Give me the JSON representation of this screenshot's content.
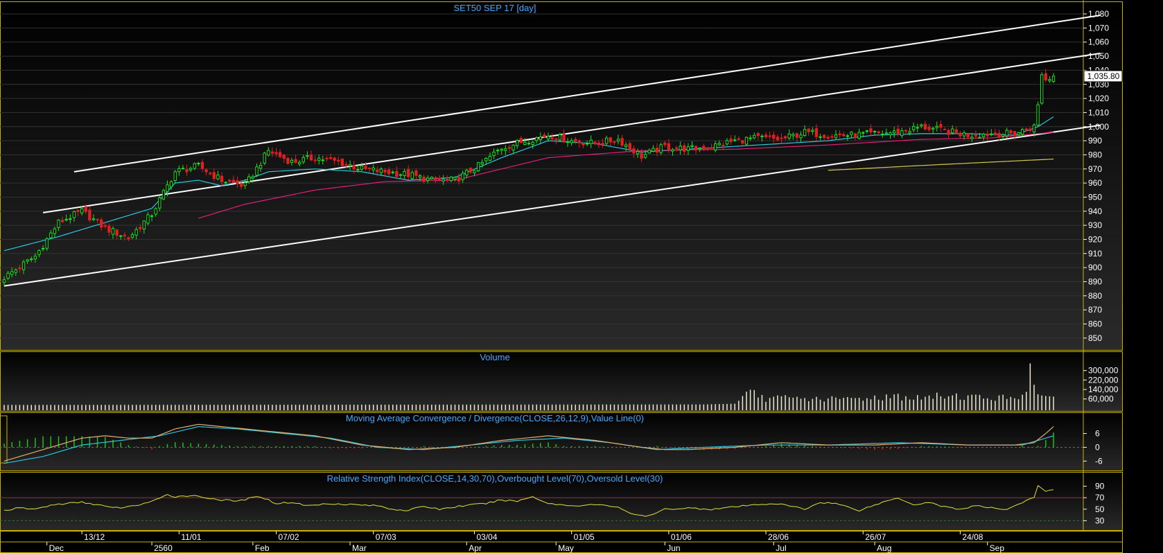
{
  "chart_data": [
    {
      "type": "candlestick",
      "title": "SET50 SEP 17   [day]",
      "last_price_label": "1,035.80",
      "ylim": [
        845,
        1082
      ],
      "y_ticks": [
        850,
        860,
        870,
        880,
        890,
        900,
        910,
        920,
        930,
        940,
        950,
        960,
        970,
        980,
        990,
        1000,
        1010,
        1020,
        1030,
        1040,
        1050,
        1060,
        1070,
        1080
      ],
      "y_tick_labels": [
        "850",
        "860",
        "870",
        "880",
        "890",
        "900",
        "910",
        "920",
        "930",
        "940",
        "950",
        "960",
        "970",
        "980",
        "990",
        "1,000",
        "1,010",
        "1,020",
        "1,030",
        "1,040",
        "1,050",
        "1,060",
        "1,070",
        "1,080"
      ],
      "close_anchors": [
        [
          0,
          893
        ],
        [
          8,
          908
        ],
        [
          14,
          932
        ],
        [
          20,
          940
        ],
        [
          26,
          928
        ],
        [
          32,
          921
        ],
        [
          38,
          938
        ],
        [
          44,
          968
        ],
        [
          50,
          972
        ],
        [
          56,
          962
        ],
        [
          62,
          958
        ],
        [
          68,
          983
        ],
        [
          74,
          975
        ],
        [
          80,
          978
        ],
        [
          86,
          975
        ],
        [
          92,
          970
        ],
        [
          98,
          968
        ],
        [
          104,
          966
        ],
        [
          110,
          962
        ],
        [
          116,
          962
        ],
        [
          122,
          972
        ],
        [
          128,
          985
        ],
        [
          134,
          990
        ],
        [
          140,
          994
        ],
        [
          146,
          990
        ],
        [
          152,
          988
        ],
        [
          158,
          991
        ],
        [
          164,
          979
        ],
        [
          170,
          986
        ],
        [
          176,
          984
        ],
        [
          182,
          986
        ],
        [
          188,
          990
        ],
        [
          194,
          992
        ],
        [
          200,
          991
        ],
        [
          206,
          996
        ],
        [
          212,
          994
        ],
        [
          218,
          994
        ],
        [
          224,
          995
        ],
        [
          230,
          996
        ],
        [
          236,
          1000
        ],
        [
          242,
          997
        ],
        [
          248,
          994
        ],
        [
          254,
          995
        ],
        [
          260,
          995
        ],
        [
          265,
          1000
        ],
        [
          266,
          1015
        ],
        [
          267,
          1038
        ],
        [
          268,
          1033
        ],
        [
          270,
          1035.8
        ]
      ],
      "moving_averages": [
        {
          "name": "ma-cyan",
          "color": "#2dc8e0",
          "points": [
            [
              0,
              912
            ],
            [
              14,
              922
            ],
            [
              26,
              932
            ],
            [
              38,
              942
            ],
            [
              44,
              960
            ],
            [
              50,
              962
            ],
            [
              56,
              958
            ],
            [
              62,
              962
            ],
            [
              68,
              968
            ],
            [
              80,
              970
            ],
            [
              92,
              968
            ],
            [
              104,
              962
            ],
            [
              116,
              964
            ],
            [
              128,
              978
            ],
            [
              140,
              990
            ],
            [
              152,
              988
            ],
            [
              164,
              982
            ],
            [
              176,
              984
            ],
            [
              188,
              986
            ],
            [
              200,
              988
            ],
            [
              212,
              990
            ],
            [
              224,
              994
            ],
            [
              236,
              995
            ],
            [
              248,
              995
            ],
            [
              260,
              994
            ],
            [
              266,
              1000
            ],
            [
              270,
              1007
            ]
          ]
        },
        {
          "name": "ma-pink",
          "color": "#e0207a",
          "points": [
            [
              50,
              935
            ],
            [
              62,
              945
            ],
            [
              80,
              955
            ],
            [
              98,
              961
            ],
            [
              116,
              962
            ],
            [
              140,
              978
            ],
            [
              164,
              983
            ],
            [
              188,
              984
            ],
            [
              212,
              987
            ],
            [
              236,
              991
            ],
            [
              254,
              992
            ],
            [
              270,
              996
            ]
          ]
        },
        {
          "name": "ma-yellow",
          "color": "#d8c84a",
          "points": [
            [
              212,
              969
            ],
            [
              240,
              973
            ],
            [
              270,
              977
            ]
          ]
        }
      ],
      "channel_lines": [
        {
          "name": "channel-lower",
          "points": [
            [
              0,
              887
            ],
            [
              282,
              1001
            ]
          ]
        },
        {
          "name": "channel-middle",
          "points": [
            [
              10,
              939
            ],
            [
              282,
              1052
            ]
          ]
        },
        {
          "name": "channel-upper",
          "points": [
            [
              18,
              968
            ],
            [
              282,
              1079
            ]
          ]
        }
      ],
      "x_count": 271
    },
    {
      "type": "bar",
      "title": "Volume",
      "ylim": [
        0,
        380000
      ],
      "y_ticks": [
        60000,
        140000,
        220000,
        300000
      ],
      "y_tick_labels": [
        "60,000",
        "140,000",
        "220,000",
        "300,000"
      ],
      "base_volume": 8000,
      "volume_anchors": [
        [
          0,
          10000
        ],
        [
          180,
          14000
        ],
        [
          188,
          20000
        ],
        [
          190,
          70000
        ],
        [
          192,
          110000
        ],
        [
          194,
          90000
        ],
        [
          196,
          60000
        ],
        [
          200,
          70000
        ],
        [
          206,
          62000
        ],
        [
          212,
          60000
        ],
        [
          218,
          62000
        ],
        [
          224,
          72000
        ],
        [
          230,
          82000
        ],
        [
          236,
          65000
        ],
        [
          242,
          92000
        ],
        [
          248,
          80000
        ],
        [
          254,
          70000
        ],
        [
          260,
          72000
        ],
        [
          263,
          120000
        ],
        [
          264,
          360000
        ],
        [
          265,
          180000
        ],
        [
          266,
          100000
        ],
        [
          267,
          90000
        ],
        [
          268,
          85000
        ],
        [
          270,
          80000
        ]
      ]
    },
    {
      "type": "line",
      "title": "Moving Average Convergence / Divergence(CLOSE,26,12,9),Value Line(0)",
      "ylim": [
        -8,
        11
      ],
      "y_ticks": [
        -6,
        0,
        6
      ],
      "y_tick_labels": [
        "-6",
        "0",
        "6"
      ],
      "macd_anchors": [
        [
          0,
          -6
        ],
        [
          8,
          -2
        ],
        [
          14,
          1
        ],
        [
          20,
          4
        ],
        [
          26,
          5
        ],
        [
          32,
          4
        ],
        [
          38,
          4
        ],
        [
          44,
          8
        ],
        [
          50,
          10
        ],
        [
          56,
          9
        ],
        [
          62,
          8
        ],
        [
          68,
          7
        ],
        [
          80,
          5
        ],
        [
          92,
          1
        ],
        [
          104,
          -1
        ],
        [
          116,
          0
        ],
        [
          128,
          3
        ],
        [
          140,
          5
        ],
        [
          152,
          3
        ],
        [
          164,
          0
        ],
        [
          170,
          -1
        ],
        [
          176,
          -1
        ],
        [
          188,
          0
        ],
        [
          200,
          2
        ],
        [
          212,
          1
        ],
        [
          224,
          1
        ],
        [
          236,
          2
        ],
        [
          248,
          1
        ],
        [
          260,
          1
        ],
        [
          265,
          2
        ],
        [
          268,
          6
        ],
        [
          270,
          9
        ]
      ],
      "signal_anchors": [
        [
          0,
          -7
        ],
        [
          10,
          -4
        ],
        [
          20,
          1
        ],
        [
          30,
          3
        ],
        [
          40,
          5
        ],
        [
          50,
          9
        ],
        [
          60,
          8
        ],
        [
          72,
          6
        ],
        [
          84,
          4
        ],
        [
          96,
          0
        ],
        [
          108,
          -1
        ],
        [
          120,
          1
        ],
        [
          132,
          3
        ],
        [
          144,
          4
        ],
        [
          156,
          2
        ],
        [
          168,
          -1
        ],
        [
          180,
          0
        ],
        [
          196,
          1
        ],
        [
          212,
          1
        ],
        [
          230,
          2
        ],
        [
          248,
          1
        ],
        [
          262,
          1
        ],
        [
          270,
          5
        ]
      ],
      "series_colors": {
        "macd": "#e0b070",
        "signal": "#2dc8e0",
        "hist_pos": "#20c020",
        "hist_neg": "#e02020"
      }
    },
    {
      "type": "line",
      "title": "Relative Strength Index(CLOSE,14,30,70),Overbought Level(70),Oversold Level(30)",
      "ylim": [
        22,
        98
      ],
      "y_ticks": [
        30,
        50,
        70,
        90
      ],
      "y_tick_labels": [
        "30",
        "50",
        "70",
        "90"
      ],
      "overbought": 70,
      "oversold": 30,
      "rsi_anchors": [
        [
          0,
          48
        ],
        [
          4,
          52
        ],
        [
          8,
          50
        ],
        [
          12,
          57
        ],
        [
          16,
          60
        ],
        [
          20,
          62
        ],
        [
          24,
          58
        ],
        [
          28,
          52
        ],
        [
          32,
          54
        ],
        [
          36,
          60
        ],
        [
          40,
          68
        ],
        [
          42,
          75
        ],
        [
          44,
          72
        ],
        [
          48,
          74
        ],
        [
          52,
          70
        ],
        [
          56,
          66
        ],
        [
          60,
          64
        ],
        [
          64,
          70
        ],
        [
          66,
          72
        ],
        [
          70,
          60
        ],
        [
          74,
          62
        ],
        [
          78,
          56
        ],
        [
          84,
          60
        ],
        [
          90,
          58
        ],
        [
          96,
          56
        ],
        [
          100,
          50
        ],
        [
          104,
          48
        ],
        [
          108,
          55
        ],
        [
          112,
          50
        ],
        [
          118,
          56
        ],
        [
          124,
          60
        ],
        [
          128,
          66
        ],
        [
          132,
          64
        ],
        [
          136,
          72
        ],
        [
          140,
          60
        ],
        [
          146,
          56
        ],
        [
          152,
          58
        ],
        [
          158,
          54
        ],
        [
          162,
          40
        ],
        [
          166,
          38
        ],
        [
          170,
          50
        ],
        [
          176,
          52
        ],
        [
          182,
          50
        ],
        [
          188,
          54
        ],
        [
          194,
          58
        ],
        [
          198,
          60
        ],
        [
          202,
          56
        ],
        [
          206,
          50
        ],
        [
          210,
          62
        ],
        [
          214,
          60
        ],
        [
          220,
          48
        ],
        [
          226,
          62
        ],
        [
          230,
          70
        ],
        [
          234,
          58
        ],
        [
          238,
          62
        ],
        [
          242,
          54
        ],
        [
          246,
          50
        ],
        [
          250,
          56
        ],
        [
          254,
          52
        ],
        [
          258,
          50
        ],
        [
          262,
          62
        ],
        [
          265,
          70
        ],
        [
          266,
          90
        ],
        [
          268,
          82
        ],
        [
          270,
          83
        ]
      ],
      "line_color": "#e0e040"
    }
  ],
  "x_axis": {
    "top_row": [
      {
        "label": "13/12",
        "i": 20
      },
      {
        "label": "11/01",
        "i": 45
      },
      {
        "label": "07/02",
        "i": 70
      },
      {
        "label": "07/03",
        "i": 95
      },
      {
        "label": "03/04",
        "i": 121
      },
      {
        "label": "01/05",
        "i": 146
      },
      {
        "label": "01/06",
        "i": 171
      },
      {
        "label": "28/06",
        "i": 196
      },
      {
        "label": "26/07",
        "i": 221
      },
      {
        "label": "24/08",
        "i": 246
      }
    ],
    "bottom_row": [
      {
        "label": "Dec",
        "i": 11
      },
      {
        "label": "2560",
        "i": 38
      },
      {
        "label": "Feb",
        "i": 64
      },
      {
        "label": "Mar",
        "i": 89
      },
      {
        "label": "Apr",
        "i": 119
      },
      {
        "label": "May",
        "i": 142
      },
      {
        "label": "Jun",
        "i": 170
      },
      {
        "label": "Jul",
        "i": 198
      },
      {
        "label": "Aug",
        "i": 224
      },
      {
        "label": "Sep",
        "i": 253
      }
    ]
  },
  "colors": {
    "frame": "#c8b400",
    "title": "#4aa8ff",
    "axis_text": "#ffffff",
    "up": "#20e020",
    "down": "#e02020",
    "channel": "#ffffff",
    "grid": "#333333"
  }
}
